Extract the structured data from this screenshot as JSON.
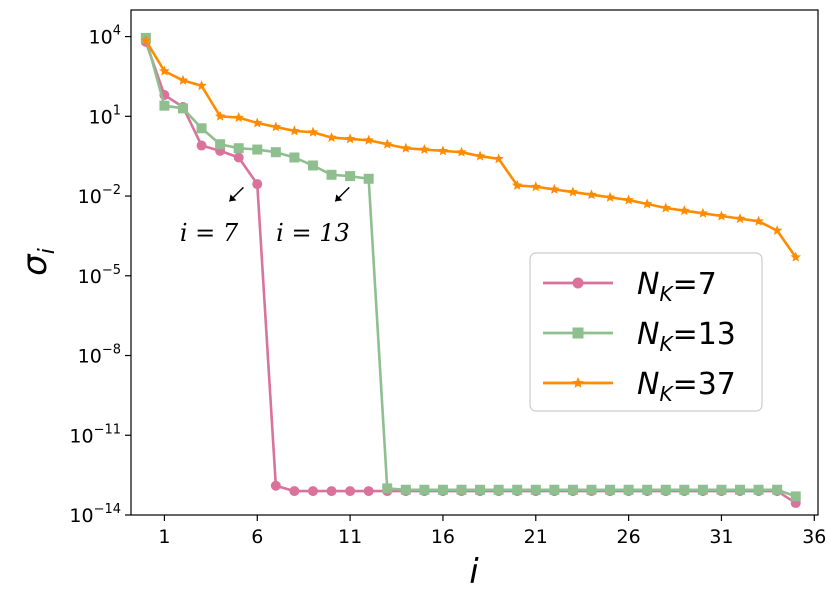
{
  "chart_data": {
    "type": "line",
    "xlabel": "i",
    "ylabel": "σ",
    "ylabel_sub": "i",
    "y_scale": "log",
    "xlim": [
      -0.8,
      36.2
    ],
    "ylim_log10": [
      -14,
      5
    ],
    "x_ticks": [
      1,
      6,
      11,
      16,
      21,
      26,
      31,
      36
    ],
    "y_ticks": [
      {
        "exp": 4,
        "base": "10",
        "sup": "4"
      },
      {
        "exp": 1,
        "base": "10",
        "sup": "1"
      },
      {
        "exp": -2,
        "base": "10",
        "sup": "−2"
      },
      {
        "exp": -5,
        "base": "10",
        "sup": "−5"
      },
      {
        "exp": -8,
        "base": "10",
        "sup": "−8"
      },
      {
        "exp": -11,
        "base": "10",
        "sup": "−11"
      },
      {
        "exp": -14,
        "base": "10",
        "sup": "−14"
      }
    ],
    "grid": false,
    "legend_position": "center-right",
    "series": [
      {
        "name": "N",
        "name_sub": "K",
        "name_suffix": "=7",
        "color": "#d9739b",
        "marker": "circle",
        "x": [
          0,
          1,
          2,
          3,
          4,
          5,
          6,
          7,
          8,
          9,
          10,
          11,
          12,
          13,
          14,
          15,
          16,
          17,
          18,
          19,
          20,
          21,
          22,
          23,
          24,
          25,
          26,
          27,
          28,
          29,
          30,
          31,
          32,
          33,
          34,
          35
        ],
        "y_log10": [
          3.8,
          1.8,
          1.35,
          -0.1,
          -0.3,
          -0.55,
          -1.55,
          -12.9,
          -13.1,
          -13.1,
          -13.1,
          -13.1,
          -13.1,
          -13.1,
          -13.1,
          -13.1,
          -13.1,
          -13.1,
          -13.1,
          -13.1,
          -13.1,
          -13.1,
          -13.1,
          -13.1,
          -13.1,
          -13.1,
          -13.1,
          -13.1,
          -13.1,
          -13.1,
          -13.1,
          -13.1,
          -13.1,
          -13.1,
          -13.1,
          -13.55
        ]
      },
      {
        "name": "N",
        "name_sub": "K",
        "name_suffix": "=13",
        "color": "#8fbf8f",
        "marker": "square",
        "x": [
          0,
          1,
          2,
          3,
          4,
          5,
          6,
          7,
          8,
          9,
          10,
          11,
          12,
          13,
          14,
          15,
          16,
          17,
          18,
          19,
          20,
          21,
          22,
          23,
          24,
          25,
          26,
          27,
          28,
          29,
          30,
          31,
          32,
          33,
          34,
          35
        ],
        "y_log10": [
          3.95,
          1.4,
          1.3,
          0.55,
          -0.05,
          -0.2,
          -0.25,
          -0.35,
          -0.55,
          -0.85,
          -1.2,
          -1.25,
          -1.35,
          -13.0,
          -13.05,
          -13.05,
          -13.05,
          -13.05,
          -13.05,
          -13.05,
          -13.05,
          -13.05,
          -13.05,
          -13.05,
          -13.05,
          -13.05,
          -13.05,
          -13.05,
          -13.05,
          -13.05,
          -13.05,
          -13.05,
          -13.05,
          -13.05,
          -13.05,
          -13.3
        ]
      },
      {
        "name": "N",
        "name_sub": "K",
        "name_suffix": "=37",
        "color": "#ff8c00",
        "marker": "star",
        "x": [
          0,
          1,
          2,
          3,
          4,
          5,
          6,
          7,
          8,
          9,
          10,
          11,
          12,
          13,
          14,
          15,
          16,
          17,
          18,
          19,
          20,
          21,
          22,
          23,
          24,
          25,
          26,
          27,
          28,
          29,
          30,
          31,
          32,
          33,
          34,
          35
        ],
        "y_log10": [
          3.85,
          2.7,
          2.35,
          2.15,
          1.0,
          0.95,
          0.75,
          0.6,
          0.45,
          0.4,
          0.2,
          0.15,
          0.1,
          -0.05,
          -0.2,
          -0.25,
          -0.3,
          -0.35,
          -0.5,
          -0.6,
          -1.6,
          -1.65,
          -1.75,
          -1.85,
          -1.95,
          -2.05,
          -2.15,
          -2.3,
          -2.45,
          -2.55,
          -2.65,
          -2.75,
          -2.85,
          -2.95,
          -3.3,
          -4.3
        ]
      }
    ],
    "annotations": [
      {
        "text": "i = 7",
        "x": 3.4,
        "y_log10": -3.7,
        "arrow_to_x": 4.5,
        "arrow_to_y_log10": -2.2
      },
      {
        "text": "i = 13",
        "x": 9.0,
        "y_log10": -3.7,
        "arrow_to_x": 10.2,
        "arrow_to_y_log10": -2.2
      }
    ]
  }
}
